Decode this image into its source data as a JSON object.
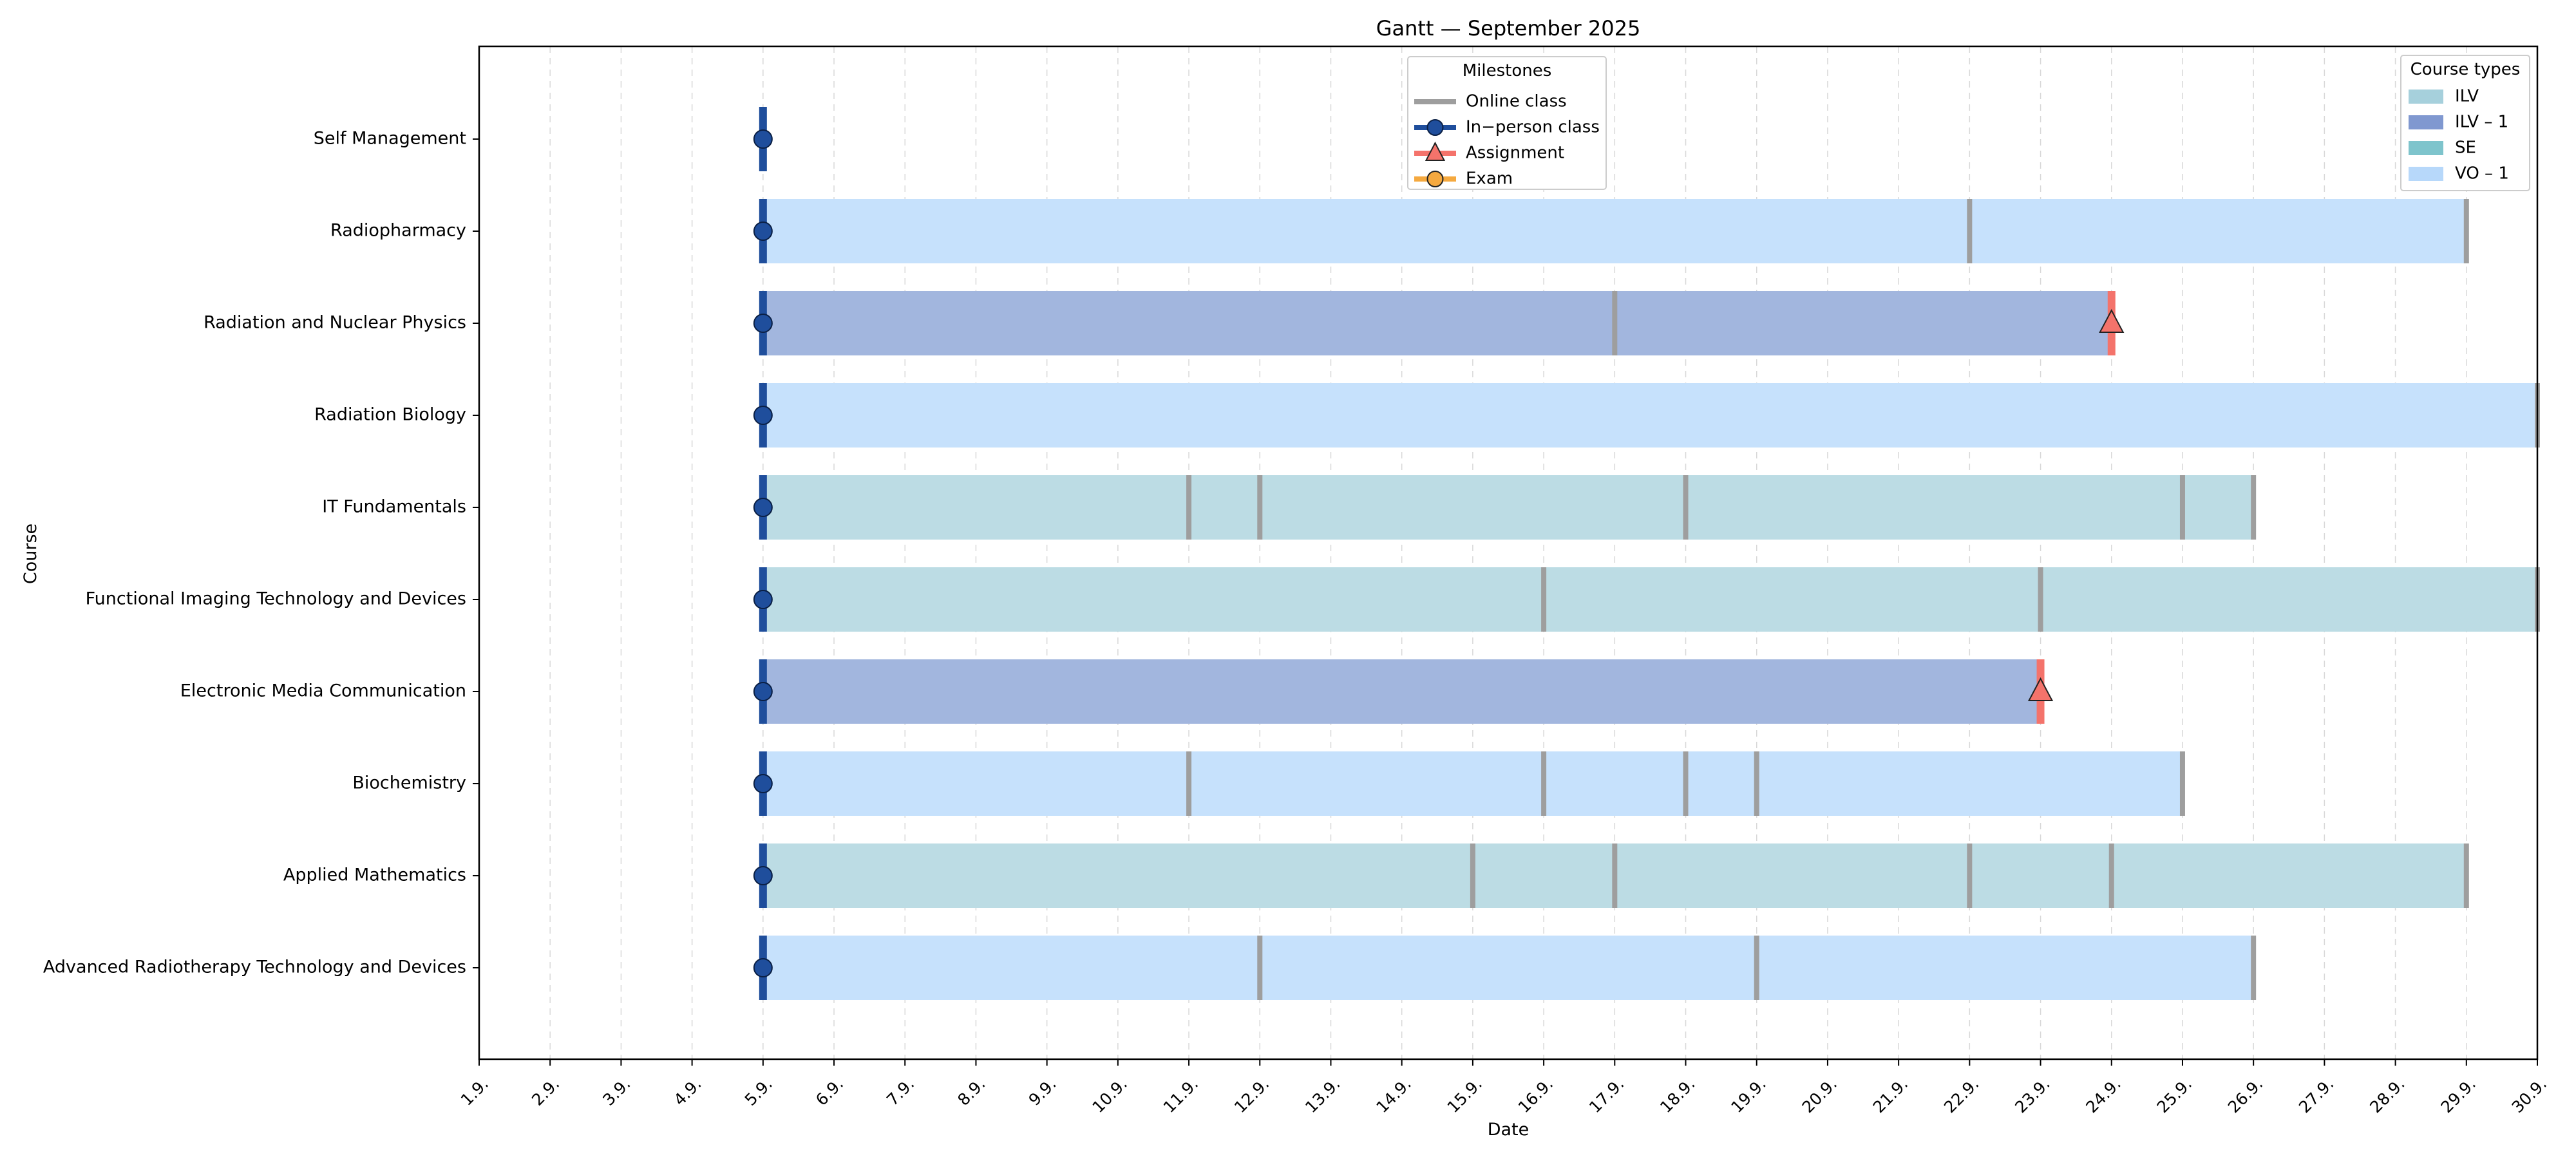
{
  "chart_data": {
    "type": "gantt",
    "title": "Gantt — September 2025",
    "xlabel": "Date",
    "ylabel": "Course",
    "grid": "vertical-dashed",
    "xlim": [
      1,
      30
    ],
    "x_ticks": [
      "1.9.",
      "2.9.",
      "3.9.",
      "4.9.",
      "5.9.",
      "6.9.",
      "7.9.",
      "8.9.",
      "9.9.",
      "10.9.",
      "11.9.",
      "12.9.",
      "13.9.",
      "14.9.",
      "15.9.",
      "16.9.",
      "17.9.",
      "18.9.",
      "19.9.",
      "20.9.",
      "21.9.",
      "22.9.",
      "23.9.",
      "24.9.",
      "25.9.",
      "26.9.",
      "27.9.",
      "28.9.",
      "29.9.",
      "30.9."
    ],
    "milestone_legend": {
      "title": "Milestones",
      "placement": "top-center",
      "items": [
        {
          "label": "Online class",
          "kind": "online",
          "color": "#9e9e9e"
        },
        {
          "label": "In−person class",
          "kind": "inperson",
          "color": "#1f4e9c"
        },
        {
          "label": "Assignment",
          "kind": "assignment",
          "color": "#f4736b"
        },
        {
          "label": "Exam",
          "kind": "exam",
          "color": "#f5a93f"
        }
      ]
    },
    "type_legend": {
      "title": "Course types",
      "placement": "top-right",
      "items": [
        {
          "label": "ILV",
          "color": "#a6d0dc"
        },
        {
          "label": "ILV – 1",
          "color": "#8098d0"
        },
        {
          "label": "SE",
          "color": "#7ec4cc"
        },
        {
          "label": "VO – 1",
          "color": "#b7d8fa"
        }
      ]
    },
    "type_fill": {
      "ILV": "#bcdce4",
      "ILV – 1": "#a2b6de",
      "VO – 1": "#c6e1fc"
    },
    "courses": [
      {
        "name": "Self Management",
        "type": null,
        "start": null,
        "end": null,
        "inperson": [
          5
        ],
        "online": [],
        "assignment": []
      },
      {
        "name": "Radiopharmacy",
        "type": "VO – 1",
        "start": 5,
        "end": 29,
        "inperson": [
          5
        ],
        "online": [
          22,
          29
        ],
        "assignment": []
      },
      {
        "name": "Radiation and Nuclear Physics",
        "type": "ILV – 1",
        "start": 5,
        "end": 24,
        "inperson": [
          5
        ],
        "online": [
          17
        ],
        "assignment": [
          24
        ]
      },
      {
        "name": "Radiation Biology",
        "type": "VO – 1",
        "start": 5,
        "end": 30,
        "inperson": [
          5
        ],
        "online": [
          30
        ],
        "assignment": []
      },
      {
        "name": "IT Fundamentals",
        "type": "ILV",
        "start": 5,
        "end": 26,
        "inperson": [
          5
        ],
        "online": [
          11,
          12,
          18,
          25,
          26
        ],
        "assignment": []
      },
      {
        "name": "Functional Imaging Technology and Devices",
        "type": "ILV",
        "start": 5,
        "end": 30,
        "inperson": [
          5
        ],
        "online": [
          16,
          23,
          30
        ],
        "assignment": []
      },
      {
        "name": "Electronic Media Communication",
        "type": "ILV – 1",
        "start": 5,
        "end": 23,
        "inperson": [
          5
        ],
        "online": [],
        "assignment": [
          23
        ]
      },
      {
        "name": "Biochemistry",
        "type": "VO – 1",
        "start": 5,
        "end": 25,
        "inperson": [
          5
        ],
        "online": [
          11,
          16,
          18,
          19,
          25
        ],
        "assignment": []
      },
      {
        "name": "Applied Mathematics",
        "type": "ILV",
        "start": 5,
        "end": 29,
        "inperson": [
          5
        ],
        "online": [
          15,
          17,
          22,
          24,
          29
        ],
        "assignment": []
      },
      {
        "name": "Advanced Radiotherapy Technology and Devices",
        "type": "VO – 1",
        "start": 5,
        "end": 26,
        "inperson": [
          5
        ],
        "online": [
          12,
          19,
          26
        ],
        "assignment": []
      }
    ]
  }
}
